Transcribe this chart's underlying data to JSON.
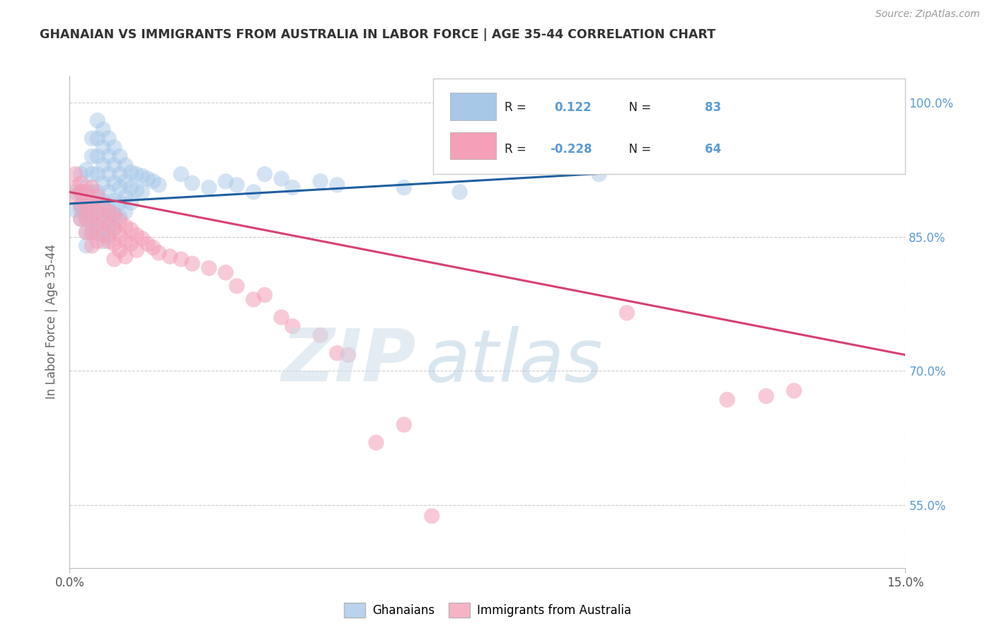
{
  "title": "GHANAIAN VS IMMIGRANTS FROM AUSTRALIA IN LABOR FORCE | AGE 35-44 CORRELATION CHART",
  "source_text": "Source: ZipAtlas.com",
  "ylabel": "In Labor Force | Age 35-44",
  "xlim": [
    0.0,
    0.15
  ],
  "ylim": [
    0.48,
    1.03
  ],
  "ytick_values": [
    0.55,
    0.7,
    0.85,
    1.0
  ],
  "ytick_labels": [
    "55.0%",
    "70.0%",
    "85.0%",
    "100.0%"
  ],
  "r_blue": "0.122",
  "n_blue": "83",
  "r_pink": "-0.228",
  "n_pink": "64",
  "legend_label_blue": "Ghanaians",
  "legend_label_pink": "Immigrants from Australia",
  "blue_color": "#a8c8e8",
  "pink_color": "#f4a0b8",
  "blue_line_color": "#2060a0",
  "pink_line_color": "#d84070",
  "blue_scatter": [
    [
      0.001,
      0.88
    ],
    [
      0.001,
      0.9
    ],
    [
      0.002,
      0.885
    ],
    [
      0.002,
      0.87
    ],
    [
      0.002,
      0.92
    ],
    [
      0.002,
      0.9
    ],
    [
      0.002,
      0.88
    ],
    [
      0.003,
      0.925
    ],
    [
      0.003,
      0.905
    ],
    [
      0.003,
      0.885
    ],
    [
      0.003,
      0.87
    ],
    [
      0.003,
      0.855
    ],
    [
      0.003,
      0.84
    ],
    [
      0.004,
      0.96
    ],
    [
      0.004,
      0.94
    ],
    [
      0.004,
      0.92
    ],
    [
      0.004,
      0.9
    ],
    [
      0.004,
      0.885
    ],
    [
      0.004,
      0.87
    ],
    [
      0.004,
      0.855
    ],
    [
      0.005,
      0.98
    ],
    [
      0.005,
      0.96
    ],
    [
      0.005,
      0.94
    ],
    [
      0.005,
      0.92
    ],
    [
      0.005,
      0.9
    ],
    [
      0.005,
      0.885
    ],
    [
      0.005,
      0.87
    ],
    [
      0.005,
      0.855
    ],
    [
      0.006,
      0.97
    ],
    [
      0.006,
      0.95
    ],
    [
      0.006,
      0.93
    ],
    [
      0.006,
      0.91
    ],
    [
      0.006,
      0.89
    ],
    [
      0.006,
      0.875
    ],
    [
      0.006,
      0.86
    ],
    [
      0.006,
      0.845
    ],
    [
      0.007,
      0.96
    ],
    [
      0.007,
      0.94
    ],
    [
      0.007,
      0.92
    ],
    [
      0.007,
      0.9
    ],
    [
      0.007,
      0.88
    ],
    [
      0.007,
      0.865
    ],
    [
      0.007,
      0.85
    ],
    [
      0.008,
      0.95
    ],
    [
      0.008,
      0.93
    ],
    [
      0.008,
      0.91
    ],
    [
      0.008,
      0.89
    ],
    [
      0.008,
      0.875
    ],
    [
      0.008,
      0.86
    ],
    [
      0.009,
      0.94
    ],
    [
      0.009,
      0.92
    ],
    [
      0.009,
      0.905
    ],
    [
      0.009,
      0.888
    ],
    [
      0.009,
      0.872
    ],
    [
      0.01,
      0.93
    ],
    [
      0.01,
      0.912
    ],
    [
      0.01,
      0.895
    ],
    [
      0.01,
      0.878
    ],
    [
      0.011,
      0.922
    ],
    [
      0.011,
      0.905
    ],
    [
      0.011,
      0.888
    ],
    [
      0.012,
      0.92
    ],
    [
      0.012,
      0.902
    ],
    [
      0.013,
      0.918
    ],
    [
      0.013,
      0.9
    ],
    [
      0.014,
      0.915
    ],
    [
      0.015,
      0.912
    ],
    [
      0.016,
      0.908
    ],
    [
      0.02,
      0.92
    ],
    [
      0.022,
      0.91
    ],
    [
      0.025,
      0.905
    ],
    [
      0.028,
      0.912
    ],
    [
      0.03,
      0.908
    ],
    [
      0.033,
      0.9
    ],
    [
      0.035,
      0.92
    ],
    [
      0.038,
      0.915
    ],
    [
      0.04,
      0.905
    ],
    [
      0.045,
      0.912
    ],
    [
      0.048,
      0.908
    ],
    [
      0.06,
      0.905
    ],
    [
      0.07,
      0.9
    ],
    [
      0.095,
      0.92
    ],
    [
      0.1,
      0.935
    ]
  ],
  "pink_scatter": [
    [
      0.001,
      0.905
    ],
    [
      0.001,
      0.92
    ],
    [
      0.001,
      0.895
    ],
    [
      0.002,
      0.91
    ],
    [
      0.002,
      0.9
    ],
    [
      0.002,
      0.885
    ],
    [
      0.002,
      0.87
    ],
    [
      0.003,
      0.9
    ],
    [
      0.003,
      0.885
    ],
    [
      0.003,
      0.87
    ],
    [
      0.003,
      0.855
    ],
    [
      0.004,
      0.905
    ],
    [
      0.004,
      0.888
    ],
    [
      0.004,
      0.872
    ],
    [
      0.004,
      0.855
    ],
    [
      0.004,
      0.84
    ],
    [
      0.005,
      0.895
    ],
    [
      0.005,
      0.878
    ],
    [
      0.005,
      0.862
    ],
    [
      0.005,
      0.845
    ],
    [
      0.006,
      0.885
    ],
    [
      0.006,
      0.868
    ],
    [
      0.006,
      0.852
    ],
    [
      0.007,
      0.878
    ],
    [
      0.007,
      0.862
    ],
    [
      0.007,
      0.845
    ],
    [
      0.008,
      0.875
    ],
    [
      0.008,
      0.858
    ],
    [
      0.008,
      0.842
    ],
    [
      0.008,
      0.825
    ],
    [
      0.009,
      0.868
    ],
    [
      0.009,
      0.852
    ],
    [
      0.009,
      0.835
    ],
    [
      0.01,
      0.862
    ],
    [
      0.01,
      0.845
    ],
    [
      0.01,
      0.828
    ],
    [
      0.011,
      0.858
    ],
    [
      0.011,
      0.842
    ],
    [
      0.012,
      0.852
    ],
    [
      0.012,
      0.835
    ],
    [
      0.013,
      0.848
    ],
    [
      0.014,
      0.842
    ],
    [
      0.015,
      0.838
    ],
    [
      0.016,
      0.832
    ],
    [
      0.018,
      0.828
    ],
    [
      0.02,
      0.825
    ],
    [
      0.022,
      0.82
    ],
    [
      0.025,
      0.815
    ],
    [
      0.028,
      0.81
    ],
    [
      0.03,
      0.795
    ],
    [
      0.033,
      0.78
    ],
    [
      0.035,
      0.785
    ],
    [
      0.038,
      0.76
    ],
    [
      0.04,
      0.75
    ],
    [
      0.045,
      0.74
    ],
    [
      0.048,
      0.72
    ],
    [
      0.05,
      0.718
    ],
    [
      0.055,
      0.62
    ],
    [
      0.06,
      0.64
    ],
    [
      0.065,
      0.538
    ],
    [
      0.1,
      0.765
    ],
    [
      0.118,
      0.668
    ],
    [
      0.125,
      0.672
    ],
    [
      0.13,
      0.678
    ]
  ],
  "blue_line_x": [
    0.0,
    0.15
  ],
  "blue_line_y": [
    0.887,
    0.94
  ],
  "pink_line_x": [
    0.0,
    0.15
  ],
  "pink_line_y": [
    0.9,
    0.718
  ],
  "background_color": "#ffffff",
  "grid_color": "#cccccc",
  "right_label_color": "#5b9bd5",
  "source_color": "#999999",
  "title_color": "#333333",
  "axis_label_color": "#666666"
}
